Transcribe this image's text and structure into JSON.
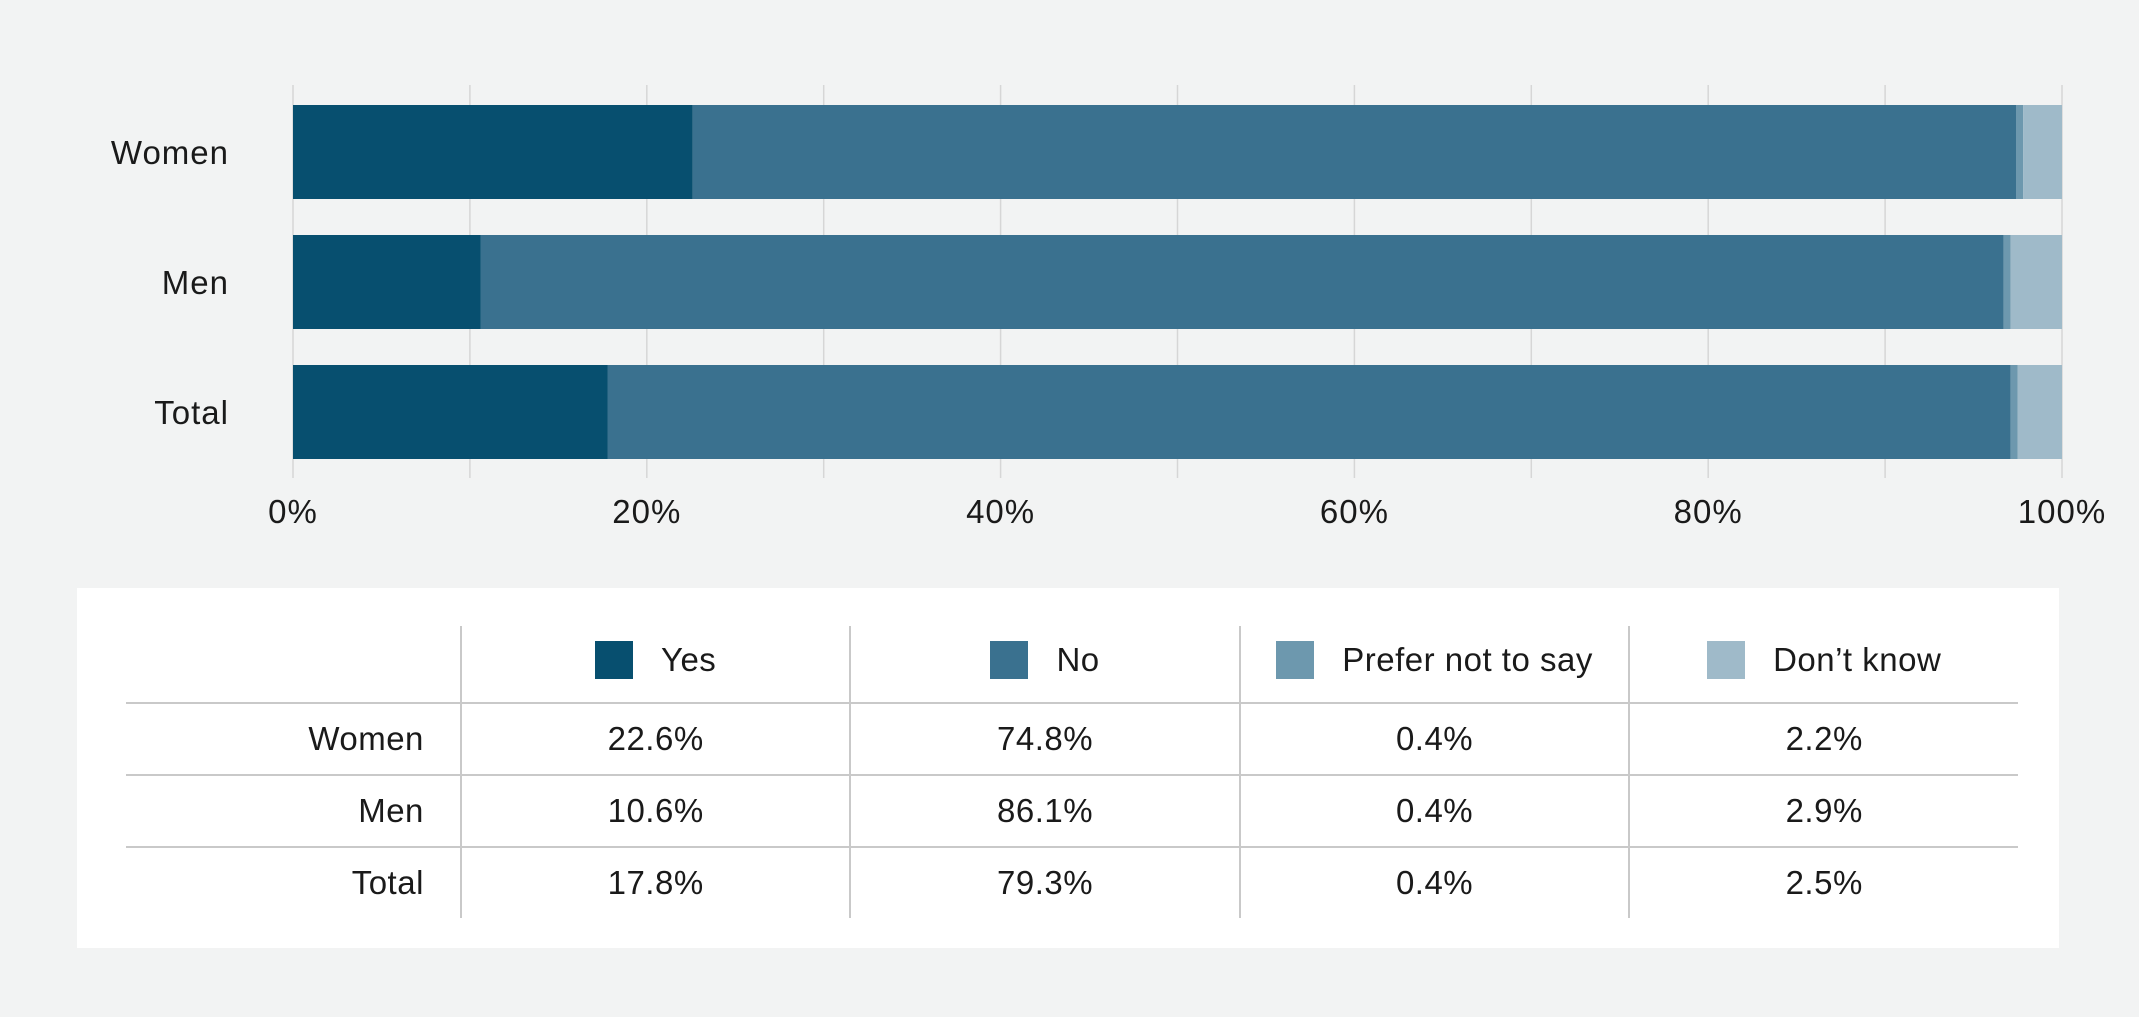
{
  "chart_data": {
    "type": "bar",
    "orientation": "horizontal",
    "stacked": true,
    "categories": [
      "Women",
      "Men",
      "Total"
    ],
    "series": [
      {
        "name": "Yes",
        "color": "#074f6f",
        "values": [
          22.6,
          10.6,
          17.8
        ],
        "labels": [
          "22.6%",
          "10.6%",
          "17.8%"
        ]
      },
      {
        "name": "No",
        "color": "#3a718f",
        "values": [
          74.8,
          86.1,
          79.3
        ],
        "labels": [
          "74.8%",
          "86.1%",
          "79.3%"
        ]
      },
      {
        "name": "Prefer not to say",
        "color": "#6d98ae",
        "values": [
          0.4,
          0.4,
          0.4
        ],
        "labels": [
          "0.4%",
          "0.4%",
          "0.4%"
        ]
      },
      {
        "name": "Don’t know",
        "color": "#9fbac9",
        "values": [
          2.2,
          2.9,
          2.5
        ],
        "labels": [
          "2.2%",
          "2.9%",
          "2.5%"
        ]
      }
    ],
    "xlim": [
      0,
      100
    ],
    "xticks": [
      0,
      20,
      40,
      60,
      80,
      100
    ],
    "xtick_labels": [
      "0%",
      "20%",
      "40%",
      "60%",
      "80%",
      "100%"
    ],
    "grid": true,
    "legend": "bottom-table",
    "title": "",
    "xlabel": "",
    "ylabel": ""
  }
}
